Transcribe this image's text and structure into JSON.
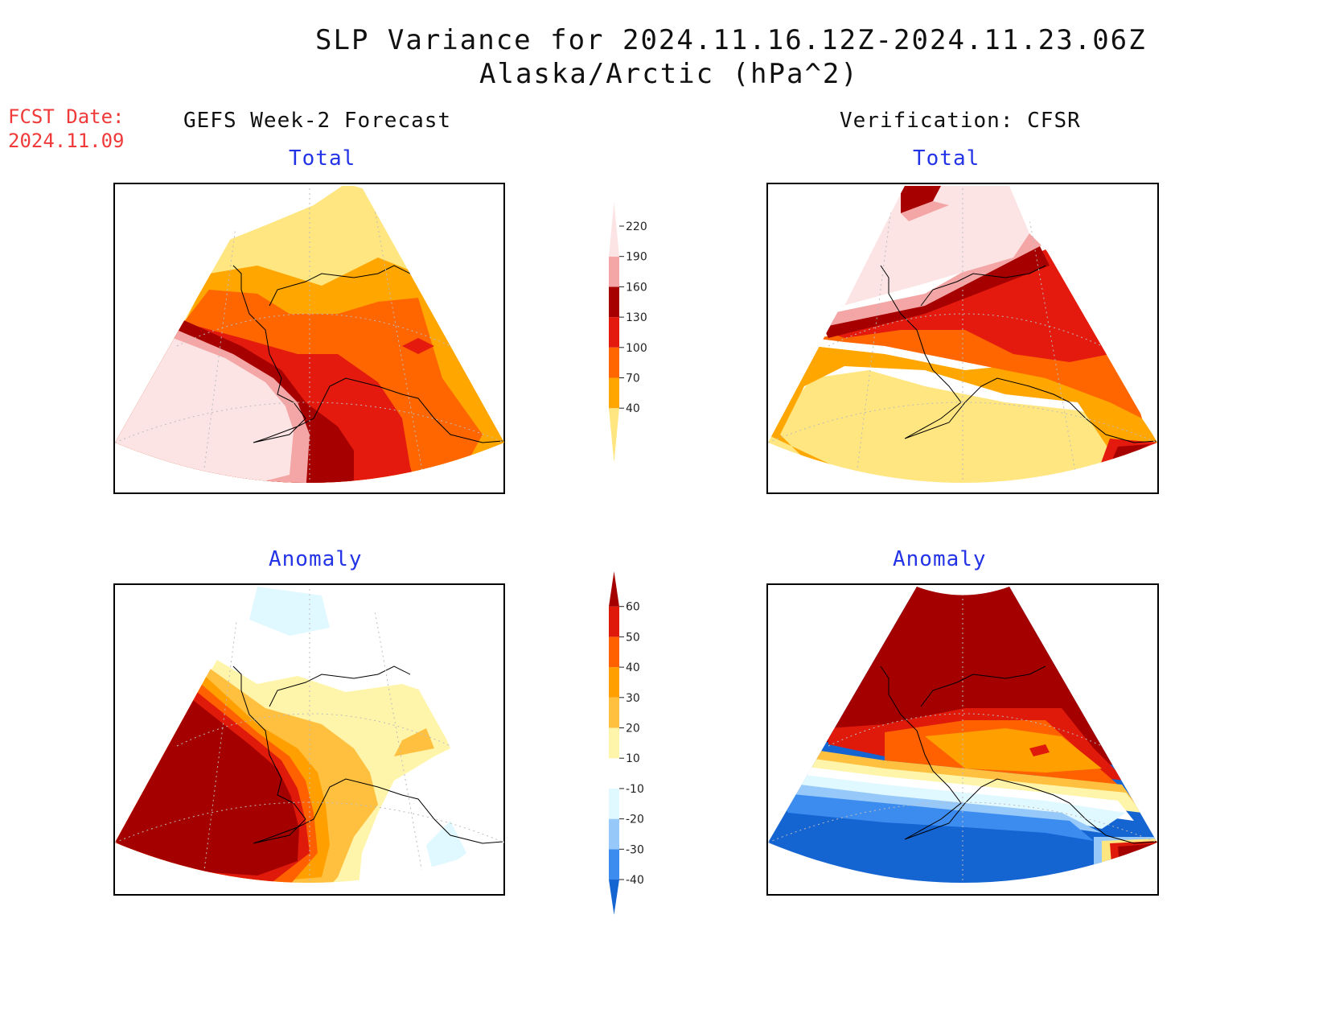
{
  "title": "SLP Variance for 2024.11.16.12Z-2024.11.23.06Z",
  "subtitle": "Alaska/Arctic (hPa^2)",
  "forecast_date": {
    "label": "FCST Date:",
    "value": "2024.11.09"
  },
  "column_headers": {
    "left": "GEFS Week-2 Forecast",
    "right": "Verification: CFSR"
  },
  "panels": {
    "gefs_total": {
      "label": "Total"
    },
    "cfsr_total": {
      "label": "Total"
    },
    "gefs_anomaly": {
      "label": "Anomaly"
    },
    "cfsr_anomaly": {
      "label": "Anomaly"
    }
  },
  "total_colorbar": {
    "levels": [
      "40",
      "70",
      "100",
      "130",
      "160",
      "190",
      "220"
    ],
    "colors": [
      "#ffe680",
      "#ffa600",
      "#ff6600",
      "#e31a0d",
      "#a60000",
      "#f4a6a6",
      "#fde4e4"
    ]
  },
  "anomaly_colorbar": {
    "levels": [
      "-40",
      "-30",
      "-20",
      "-10",
      "10",
      "20",
      "30",
      "40",
      "50",
      "60"
    ],
    "colors": [
      "#1464d2",
      "#3c8cf0",
      "#96c8fa",
      "#e0f8ff",
      "#ffffff",
      "#fff5aa",
      "#ffc040",
      "#ffa000",
      "#ff6000",
      "#e01a0a",
      "#a50000"
    ]
  }
}
